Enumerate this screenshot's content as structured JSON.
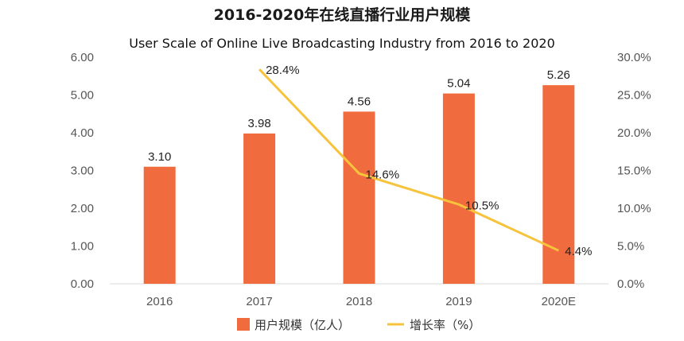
{
  "header": {
    "title": "2016-2020年在线直播行业用户规模",
    "subtitle": "User Scale of Online Live Broadcasting Industry from 2016 to 2020"
  },
  "colors": {
    "bar": "#F06B3E",
    "line": "#F7C33C",
    "axis": "#d9d9d9",
    "text": "#555555"
  },
  "chart_data": {
    "type": "bar",
    "title": "2016-2020年在线直播行业用户规模",
    "subtitle": "User Scale of Online Live Broadcasting Industry from 2016 to 2020",
    "categories": [
      "2016",
      "2017",
      "2018",
      "2019",
      "2020E"
    ],
    "series": [
      {
        "name": "用户规模（亿人）",
        "type": "bar",
        "axis": "left",
        "values": [
          3.1,
          3.98,
          4.56,
          5.04,
          5.26
        ],
        "labels": [
          "3.10",
          "3.98",
          "4.56",
          "5.04",
          "5.26"
        ]
      },
      {
        "name": "增长率（%）",
        "type": "line",
        "axis": "right",
        "values": [
          null,
          28.4,
          14.6,
          10.5,
          4.4
        ],
        "labels": [
          "",
          "28.4%",
          "14.6%",
          "10.5%",
          "4.4%"
        ]
      }
    ],
    "ylim_left": [
      0,
      6
    ],
    "ylim_right": [
      0,
      30
    ],
    "yticks_left": [
      "0.00",
      "1.00",
      "2.00",
      "3.00",
      "4.00",
      "5.00",
      "6.00"
    ],
    "yticks_right": [
      "0.0%",
      "5.0%",
      "10.0%",
      "15.0%",
      "20.0%",
      "25.0%",
      "30.0%"
    ],
    "legend": [
      "用户规模（亿人）",
      "增长率（%）"
    ],
    "legend_position": "bottom-center"
  }
}
